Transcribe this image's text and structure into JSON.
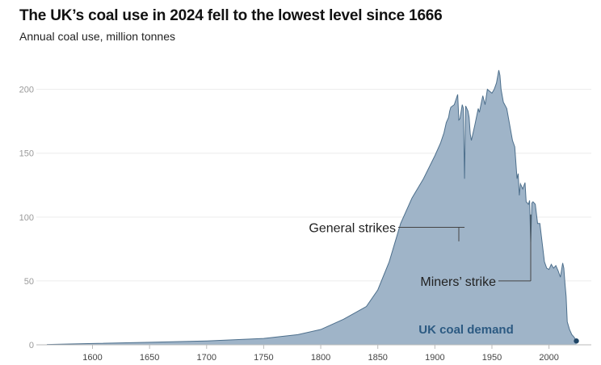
{
  "chart_data": {
    "type": "area",
    "title": "The UK’s coal use in 2024 fell to the lowest level since 1666",
    "subtitle": "Annual coal use, million tonnes",
    "xlabel": "",
    "ylabel": "",
    "xlim": [
      1560,
      2030
    ],
    "ylim": [
      0,
      220
    ],
    "grid": true,
    "x_ticks": [
      1600,
      1650,
      1700,
      1750,
      1800,
      1850,
      1900,
      1950,
      2000
    ],
    "y_ticks": [
      0,
      50,
      100,
      150,
      200
    ],
    "series": [
      {
        "name": "UK coal demand",
        "color": "#9fb4c8",
        "line_color": "#4d6f8c",
        "x": [
          1560,
          1600,
          1650,
          1700,
          1750,
          1780,
          1800,
          1820,
          1840,
          1850,
          1860,
          1870,
          1880,
          1890,
          1900,
          1905,
          1908,
          1910,
          1912,
          1913,
          1914,
          1917,
          1920,
          1921,
          1922,
          1924,
          1925,
          1926,
          1927,
          1929,
          1930,
          1931,
          1932,
          1935,
          1938,
          1939,
          1942,
          1944,
          1946,
          1950,
          1952,
          1954,
          1956,
          1957,
          1958,
          1960,
          1963,
          1966,
          1968,
          1970,
          1972,
          1973,
          1974,
          1975,
          1977,
          1979,
          1980,
          1982,
          1983,
          1984,
          1985,
          1986,
          1988,
          1990,
          1992,
          1994,
          1996,
          1998,
          2000,
          2002,
          2004,
          2006,
          2008,
          2010,
          2012,
          2013,
          2014,
          2015,
          2016,
          2018,
          2020,
          2022,
          2024
        ],
        "values": [
          0.2,
          1,
          2,
          3,
          5,
          8,
          12,
          20,
          30,
          43,
          65,
          95,
          115,
          130,
          148,
          158,
          166,
          174,
          178,
          183,
          186,
          188,
          196,
          176,
          177,
          188,
          185,
          130,
          187,
          183,
          178,
          165,
          160,
          172,
          185,
          182,
          195,
          188,
          200,
          197,
          200,
          205,
          215,
          211,
          200,
          190,
          185,
          170,
          160,
          155,
          130,
          134,
          117,
          126,
          122,
          127,
          112,
          110,
          113,
          80,
          111,
          112,
          110,
          95,
          95,
          80,
          65,
          60,
          59,
          63,
          60,
          62,
          58,
          53,
          64,
          60,
          48,
          38,
          18,
          12,
          8,
          6,
          3
        ]
      }
    ],
    "annotations": [
      {
        "text": "General strikes",
        "x": [
          1921,
          1926
        ]
      },
      {
        "text": "Miners’ strike",
        "x": [
          1984
        ]
      },
      {
        "text": "UK coal demand"
      }
    ]
  }
}
